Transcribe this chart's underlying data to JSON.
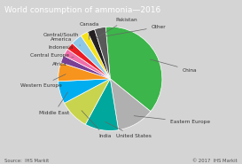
{
  "title": "World consumption of ammonia—2016",
  "source_left": "Source:  IHS Markit",
  "source_right": "© 2017  IHS Markit",
  "slices": [
    {
      "label": "China",
      "value": 32,
      "color": "#3cb54a"
    },
    {
      "label": "Eastern Europe",
      "value": 10,
      "color": "#b0b0b0"
    },
    {
      "label": "United States",
      "value": 9,
      "color": "#00a79d"
    },
    {
      "label": "India",
      "value": 8,
      "color": "#c8d44e"
    },
    {
      "label": "Middle East",
      "value": 6,
      "color": "#00aeef"
    },
    {
      "label": "Western Europe",
      "value": 5,
      "color": "#f7941d"
    },
    {
      "label": "Africa",
      "value": 2,
      "color": "#7b3f96"
    },
    {
      "label": "Central Europe",
      "value": 2,
      "color": "#f06eaa"
    },
    {
      "label": "Indonesia",
      "value": 2,
      "color": "#ed1c24"
    },
    {
      "label": "Central/South\nAmerica",
      "value": 3,
      "color": "#8dc8e8"
    },
    {
      "label": "Canada",
      "value": 2,
      "color": "#f5e11a"
    },
    {
      "label": "Pakistan",
      "value": 2,
      "color": "#231f20"
    },
    {
      "label": "Other",
      "value": 3,
      "color": "#595959"
    }
  ],
  "bg_color": "#d4d4d4",
  "title_bg": "#6a6a6a",
  "title_color": "#ffffff",
  "title_fontsize": 6.5,
  "label_fontsize": 4.2,
  "source_fontsize": 3.8
}
